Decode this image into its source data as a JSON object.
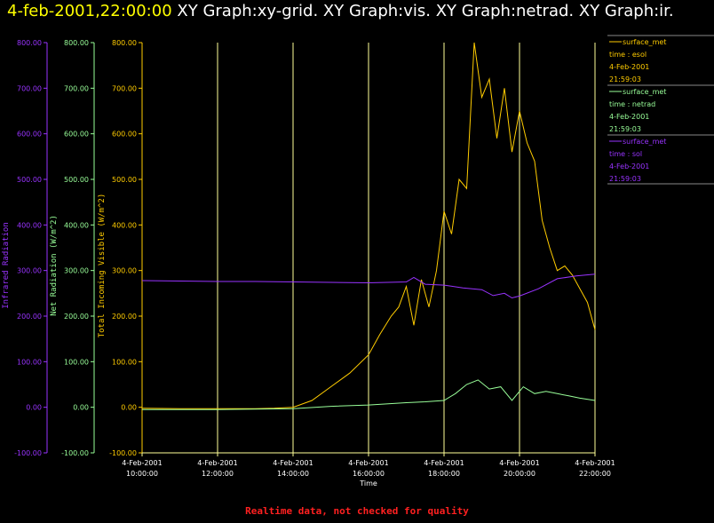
{
  "title": {
    "datetime": "4-feb-2001,22:00:00",
    "rest": "XY Graph:xy-grid.  XY Graph:vis.  XY Graph:netrad.  XY Graph:ir."
  },
  "footer": "Realtime data, not checked for quality",
  "colors": {
    "infrared": "#9933ff",
    "netrad": "#99ff99",
    "visible": "#ffcc00",
    "grid": "#ffff99",
    "title_date": "#ffff00",
    "footer": "#ff2020"
  },
  "chart_data": {
    "type": "line",
    "xlabel": "Time",
    "x_range_hours": [
      10,
      22
    ],
    "x_ticks": [
      {
        "hour": 10,
        "date": "4-Feb-2001",
        "time": "10:00:00"
      },
      {
        "hour": 12,
        "date": "4-Feb-2001",
        "time": "12:00:00"
      },
      {
        "hour": 14,
        "date": "4-Feb-2001",
        "time": "14:00:00"
      },
      {
        "hour": 16,
        "date": "4-Feb-2001",
        "time": "16:00:00"
      },
      {
        "hour": 18,
        "date": "4-Feb-2001",
        "time": "18:00:00"
      },
      {
        "hour": 20,
        "date": "4-Feb-2001",
        "time": "20:00:00"
      },
      {
        "hour": 22,
        "date": "4-Feb-2001",
        "time": "22:00:00"
      }
    ],
    "grid": true,
    "y_axes": [
      {
        "id": "ir",
        "label": "Infrared Radiation",
        "ylim": [
          -100,
          800
        ],
        "ticks": [
          "-100.00",
          "0.00",
          "100.00",
          "200.00",
          "300.00",
          "400.00",
          "500.00",
          "600.00",
          "700.00",
          "800.00"
        ]
      },
      {
        "id": "netrad",
        "label": "Net Radiation (W/m^2)",
        "ylim": [
          -100,
          800
        ],
        "ticks": [
          "-100.00",
          "0.00",
          "100.00",
          "200.00",
          "300.00",
          "400.00",
          "500.00",
          "600.00",
          "700.00",
          "800.00"
        ]
      },
      {
        "id": "vis",
        "label": "Total Incoming Visible (W/m^2)",
        "ylim": [
          -100,
          800
        ],
        "ticks": [
          "-100.00",
          "0.00",
          "100.00",
          "200.00",
          "300.00",
          "400.00",
          "500.00",
          "600.00",
          "700.00",
          "800.00"
        ]
      }
    ],
    "legend": [
      {
        "source": "surface_met",
        "field": "time : esol",
        "date": "4-Feb-2001",
        "time": "21:59:03"
      },
      {
        "source": "surface_met",
        "field": "time : netrad",
        "date": "4-Feb-2001",
        "time": "21:59:03"
      },
      {
        "source": "surface_met",
        "field": "time : sol",
        "date": "4-Feb-2001",
        "time": "21:59:03"
      }
    ],
    "series": [
      {
        "axis": "vis",
        "x": [
          10,
          11,
          12,
          13,
          13.5,
          14,
          14.5,
          15,
          15.5,
          16,
          16.3,
          16.6,
          16.8,
          17,
          17.2,
          17.4,
          17.6,
          17.8,
          18,
          18.2,
          18.4,
          18.6,
          18.8,
          19,
          19.2,
          19.4,
          19.6,
          19.8,
          20,
          20.2,
          20.4,
          20.6,
          20.8,
          21,
          21.2,
          21.4,
          21.6,
          21.8,
          22
        ],
        "values": [
          -2,
          -3,
          -3,
          -3,
          -2,
          0,
          15,
          45,
          75,
          115,
          160,
          200,
          220,
          265,
          180,
          280,
          220,
          300,
          430,
          380,
          500,
          480,
          800,
          680,
          720,
          590,
          700,
          560,
          650,
          580,
          540,
          410,
          350,
          300,
          310,
          290,
          260,
          230,
          170
        ]
      },
      {
        "axis": "netrad",
        "x": [
          10,
          12,
          14,
          15,
          16,
          17,
          17.5,
          18,
          18.3,
          18.6,
          18.9,
          19.2,
          19.5,
          19.8,
          20.1,
          20.4,
          20.7,
          21,
          21.3,
          21.6,
          22
        ],
        "values": [
          -5,
          -5,
          -3,
          2,
          5,
          10,
          12,
          15,
          30,
          50,
          60,
          40,
          45,
          15,
          45,
          30,
          35,
          30,
          25,
          20,
          15
        ]
      },
      {
        "axis": "ir",
        "x": [
          10,
          11,
          12,
          13,
          14,
          15,
          16,
          17,
          17.2,
          17.5,
          18,
          18.5,
          19,
          19.3,
          19.6,
          19.8,
          20,
          20.5,
          21,
          21.5,
          22
        ],
        "values": [
          278,
          277,
          276,
          276,
          275,
          274,
          273,
          275,
          285,
          270,
          268,
          262,
          258,
          245,
          250,
          240,
          244,
          260,
          282,
          288,
          292
        ]
      }
    ]
  }
}
